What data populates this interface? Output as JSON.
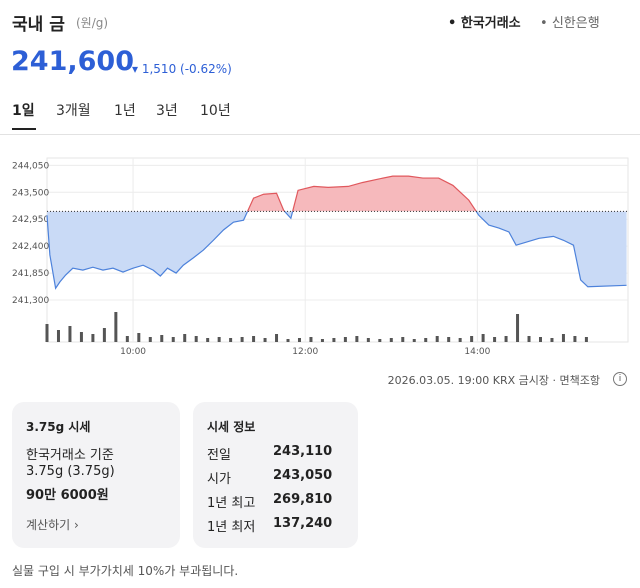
{
  "header": {
    "title": "국내 금",
    "unit": "(원/g)",
    "sources": [
      "한국거래소",
      "신한은행"
    ],
    "price": "241,600",
    "change": "1,510 (-0.62%)"
  },
  "tabs": [
    "1일",
    "3개월",
    "1년",
    "3년",
    "10년"
  ],
  "chart": {
    "type": "area",
    "color_up": "#e0585d",
    "fill_up": "#f6b9bc",
    "color_down": "#4d82db",
    "fill_down": "#c9daf6",
    "volume_color": "#555555",
    "baseline": 243110,
    "x": [
      540,
      542,
      546,
      549,
      553,
      558,
      565,
      572,
      579,
      586,
      593,
      600,
      607,
      614,
      619,
      624,
      630,
      635,
      642,
      649,
      656,
      663,
      670,
      677,
      684,
      691,
      700,
      705,
      710,
      715,
      726,
      736,
      750,
      760,
      771,
      781,
      792,
      802,
      813,
      823,
      834,
      841,
      848,
      855,
      862,
      867,
      874,
      883,
      893,
      900,
      907,
      912,
      917,
      944
    ],
    "values": [
      243030,
      242220,
      241540,
      241670,
      241810,
      241950,
      241910,
      241970,
      241910,
      241950,
      241870,
      241950,
      242010,
      241910,
      241790,
      241950,
      241850,
      242010,
      242160,
      242320,
      242520,
      242730,
      242890,
      242930,
      243380,
      243460,
      243480,
      243130,
      242970,
      243540,
      243620,
      243600,
      243620,
      243700,
      243770,
      243830,
      243830,
      243790,
      243790,
      243640,
      243340,
      243030,
      242830,
      242770,
      242690,
      242420,
      242480,
      242560,
      242600,
      242520,
      242420,
      241710,
      241570,
      241600
    ],
    "xlim": [
      540,
      945
    ],
    "ylim": [
      241300,
      244200
    ],
    "yticks": [
      {
        "value": 244050,
        "label": "244,050"
      },
      {
        "value": 243500,
        "label": "243,500"
      },
      {
        "value": 242950,
        "label": "242,950"
      },
      {
        "value": 242400,
        "label": "242,400"
      },
      {
        "value": 241850,
        "label": "241,850"
      },
      {
        "value": 241300,
        "label": "241,300"
      }
    ],
    "xticks": [
      {
        "value": 600,
        "label": "10:00"
      },
      {
        "value": 720,
        "label": "12:00"
      },
      {
        "value": 840,
        "label": "14:00"
      }
    ],
    "volume": {
      "x": [
        540,
        548,
        556,
        564,
        572,
        580,
        588,
        596,
        604,
        612,
        620,
        628,
        636,
        644,
        652,
        660,
        668,
        676,
        684,
        692,
        700,
        708,
        716,
        724,
        732,
        740,
        748,
        756,
        764,
        772,
        780,
        788,
        796,
        804,
        812,
        820,
        828,
        836,
        844,
        852,
        860,
        868,
        876,
        884,
        892,
        900,
        908,
        916
      ],
      "values": [
        18,
        12,
        16,
        10,
        8,
        14,
        30,
        6,
        9,
        5,
        7,
        5,
        8,
        6,
        4,
        5,
        4,
        5,
        6,
        4,
        8,
        3,
        4,
        5,
        3,
        4,
        5,
        6,
        4,
        3,
        4,
        5,
        3,
        4,
        6,
        5,
        4,
        6,
        8,
        5,
        6,
        28,
        6,
        5,
        4,
        8,
        6,
        5
      ]
    }
  },
  "timestamp": "2026.03.05. 19:00 KRX 금시장 · 면책조항",
  "card_gram": {
    "title": "3.75g 시세",
    "basis": "한국거래소 기준",
    "weight": "3.75g (3.75g)",
    "price": "90만 6000원",
    "link": "계산하기"
  },
  "card_info": {
    "title": "시세 정보",
    "rows": [
      [
        "전일",
        "243,110"
      ],
      [
        "시가",
        "243,050"
      ],
      [
        "1년 최고",
        "269,810"
      ],
      [
        "1년 최저",
        "137,240"
      ]
    ]
  },
  "footer": "실물 구입 시 부가가치세 10%가 부과됩니다."
}
